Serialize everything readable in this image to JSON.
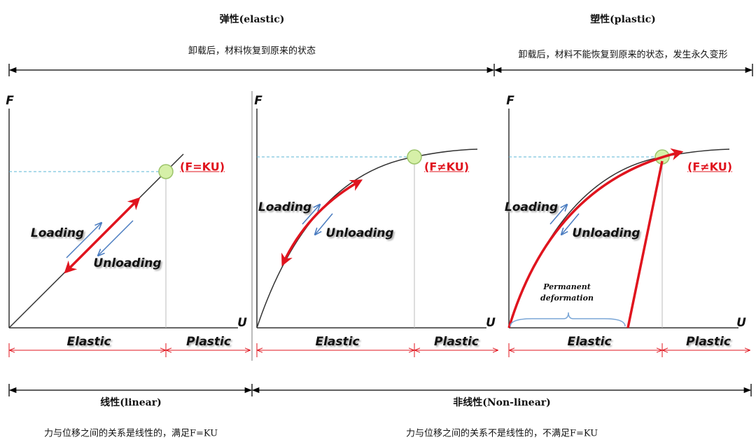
{
  "header": {
    "elastic": {
      "title": "弹性(elastic)",
      "description": "卸载后，材料恢复到原来的状态"
    },
    "plastic": {
      "title": "塑性(plastic)",
      "description": "卸载后，材料不能恢复到原来的状态，发生永久变形"
    }
  },
  "panels": [
    {
      "y_axis": "F",
      "x_axis": "U",
      "point_label": "(F=KU)",
      "loading": "Loading",
      "unloading": "Unloading",
      "elastic_region": "Elastic",
      "plastic_region": "Plastic"
    },
    {
      "y_axis": "F",
      "x_axis": "U",
      "point_label": "(F≠KU)",
      "loading": "Loading",
      "unloading": "Unloading",
      "elastic_region": "Elastic",
      "plastic_region": "Plastic"
    },
    {
      "y_axis": "F",
      "x_axis": "U",
      "point_label": "(F≠KU)",
      "loading": "Loading",
      "unloading": "Unloading",
      "elastic_region": "Elastic",
      "plastic_region": "Plastic",
      "annotation": "Permanent deformation"
    }
  ],
  "footer": {
    "linear": {
      "title": "线性(linear)",
      "description": "力与位移之间的关系是线性的，满足F=KU"
    },
    "nonlinear": {
      "title": "非线性(Non-linear)",
      "description": "力与位移之间的关系不是线性的，不满足F=KU"
    }
  }
}
